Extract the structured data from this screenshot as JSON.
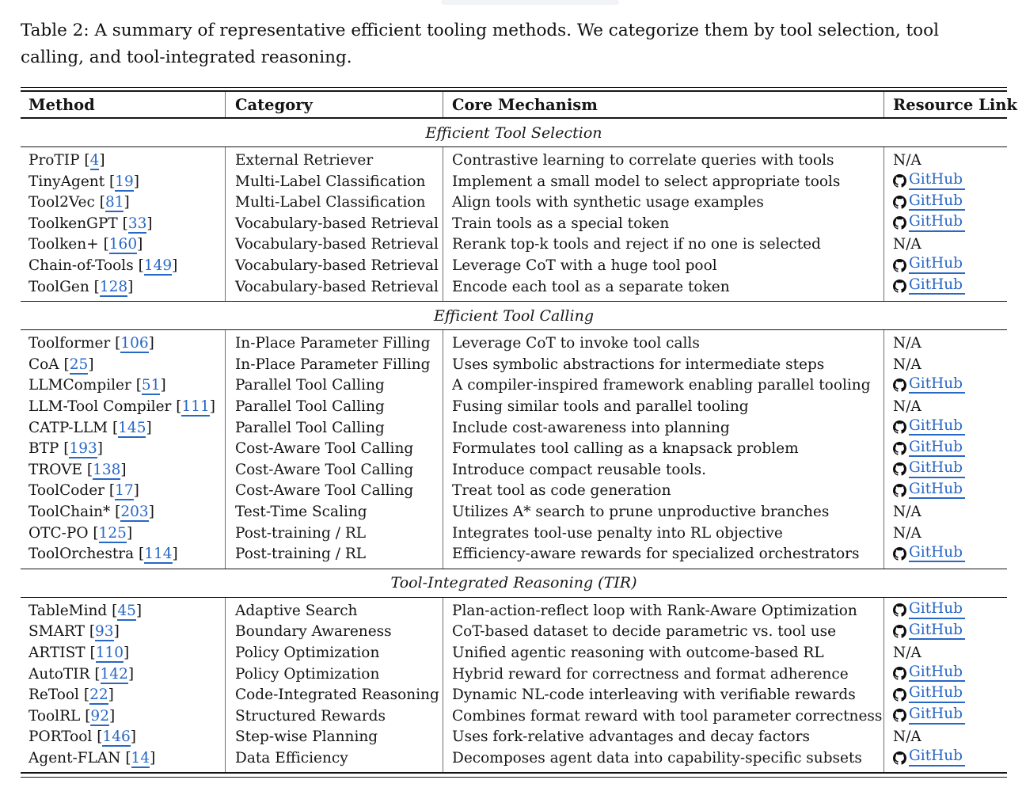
{
  "page": {
    "caption": "Table 2: A summary of representative efficient tooling methods. We categorize them by tool selection, tool calling, and tool-integrated reasoning."
  },
  "colors": {
    "link_blue": "#2767c5",
    "rule_black": "#161616",
    "column_divider_gray": "#6e6e6e"
  },
  "table": {
    "headers": [
      "Method",
      "Category",
      "Core Mechanism",
      "Resource Link"
    ],
    "link_labels": {
      "github": "GitHub",
      "na": "N/A",
      "github_icon": "github-octocat-icon"
    },
    "sections": [
      {
        "title": "Efficient Tool Selection",
        "rows": [
          {
            "method": "ProTIP",
            "cite": "4",
            "category": "External Retriever",
            "mechanism": "Contrastive learning to correlate queries with tools",
            "resource": "na"
          },
          {
            "method": "TinyAgent",
            "cite": "19",
            "category": "Multi-Label Classification",
            "mechanism": "Implement a small model to select appropriate tools",
            "resource": "github"
          },
          {
            "method": "Tool2Vec",
            "cite": "81",
            "category": "Multi-Label Classification",
            "mechanism": "Align tools with synthetic usage examples",
            "resource": "github"
          },
          {
            "method": "ToolkenGPT",
            "cite": "33",
            "category": "Vocabulary-based Retrieval",
            "mechanism": "Train tools as a special token",
            "resource": "github"
          },
          {
            "method": "Toolken+",
            "cite": "160",
            "category": "Vocabulary-based Retrieval",
            "mechanism": "Rerank top-k tools and reject if no one is selected",
            "resource": "na"
          },
          {
            "method": "Chain-of-Tools",
            "cite": "149",
            "category": "Vocabulary-based Retrieval",
            "mechanism": "Leverage CoT with a huge tool pool",
            "resource": "github"
          },
          {
            "method": "ToolGen",
            "cite": "128",
            "category": "Vocabulary-based Retrieval",
            "mechanism": "Encode each tool as a separate token",
            "resource": "github"
          }
        ]
      },
      {
        "title": "Efficient Tool Calling",
        "rows": [
          {
            "method": "Toolformer",
            "cite": "106",
            "category": "In-Place Parameter Filling",
            "mechanism": "Leverage CoT to invoke tool calls",
            "resource": "na"
          },
          {
            "method": "CoA",
            "cite": "25",
            "category": "In-Place Parameter Filling",
            "mechanism": "Uses symbolic abstractions for intermediate steps",
            "resource": "na"
          },
          {
            "method": "LLMCompiler",
            "cite": "51",
            "category": "Parallel Tool Calling",
            "mechanism": "A compiler-inspired framework enabling parallel tooling",
            "resource": "github"
          },
          {
            "method": "LLM-Tool Compiler",
            "cite": "111",
            "category": "Parallel Tool Calling",
            "mechanism": "Fusing similar tools and parallel tooling",
            "resource": "na"
          },
          {
            "method": "CATP-LLM",
            "cite": "145",
            "category": "Parallel Tool Calling",
            "mechanism": "Include cost-awareness into planning",
            "resource": "github"
          },
          {
            "method": "BTP",
            "cite": "193",
            "category": "Cost-Aware Tool Calling",
            "mechanism": "Formulates tool calling as a knapsack problem",
            "resource": "github"
          },
          {
            "method": "TROVE",
            "cite": "138",
            "category": "Cost-Aware Tool Calling",
            "mechanism": "Introduce compact reusable tools.",
            "resource": "github"
          },
          {
            "method": "ToolCoder",
            "cite": "17",
            "category": "Cost-Aware Tool Calling",
            "mechanism": "Treat tool as code generation",
            "resource": "github"
          },
          {
            "method": "ToolChain*",
            "cite": "203",
            "category": "Test-Time Scaling",
            "mechanism": "Utilizes A* search to prune unproductive branches",
            "resource": "na"
          },
          {
            "method": "OTC-PO",
            "cite": "125",
            "category": "Post-training / RL",
            "mechanism": "Integrates tool-use penalty into RL objective",
            "resource": "na"
          },
          {
            "method": "ToolOrchestra",
            "cite": "114",
            "category": "Post-training / RL",
            "mechanism": "Efficiency-aware rewards for specialized orchestrators",
            "resource": "github"
          }
        ]
      },
      {
        "title": "Tool-Integrated Reasoning (TIR)",
        "rows": [
          {
            "method": "TableMind",
            "cite": "45",
            "category": "Adaptive Search",
            "mechanism": "Plan-action-reflect loop with Rank-Aware Optimization",
            "resource": "github"
          },
          {
            "method": "SMART",
            "cite": "93",
            "category": "Boundary Awareness",
            "mechanism": "CoT-based dataset to decide parametric vs. tool use",
            "resource": "github"
          },
          {
            "method": "ARTIST",
            "cite": "110",
            "category": "Policy Optimization",
            "mechanism": "Unified agentic reasoning with outcome-based RL",
            "resource": "na"
          },
          {
            "method": "AutoTIR",
            "cite": "142",
            "category": "Policy Optimization",
            "mechanism": "Hybrid reward for correctness and format adherence",
            "resource": "github"
          },
          {
            "method": "ReTool",
            "cite": "22",
            "category": "Code-Integrated Reasoning",
            "mechanism": "Dynamic NL-code interleaving with verifiable rewards",
            "resource": "github"
          },
          {
            "method": "ToolRL",
            "cite": "92",
            "category": "Structured Rewards",
            "mechanism": "Combines format reward with tool parameter correctness",
            "resource": "github"
          },
          {
            "method": "PORTool",
            "cite": "146",
            "category": "Step-wise Planning",
            "mechanism": "Uses fork-relative advantages and decay factors",
            "resource": "na"
          },
          {
            "method": "Agent-FLAN",
            "cite": "14",
            "category": "Data Efficiency",
            "mechanism": "Decomposes agent data into capability-specific subsets",
            "resource": "github"
          }
        ]
      }
    ]
  }
}
